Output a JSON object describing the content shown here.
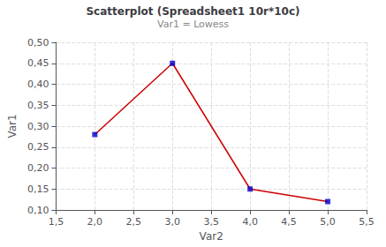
{
  "chart_data": {
    "type": "line",
    "title": "Scatterplot (Spreadsheet1 10r*10c)",
    "subtitle": "Var1 = Lowess",
    "xlabel": "Var2",
    "ylabel": "Var1",
    "x": [
      2.0,
      3.0,
      4.0,
      5.0
    ],
    "series": [
      {
        "type": "line",
        "color": "#cc0000",
        "values": [
          0.28,
          0.45,
          0.15,
          0.12
        ]
      },
      {
        "type": "scatter",
        "color": "#0000cc",
        "marker": "square",
        "values": [
          0.28,
          0.45,
          0.15,
          0.12
        ]
      }
    ],
    "xlim": [
      1.5,
      5.5
    ],
    "ylim": [
      0.1,
      0.5
    ],
    "xticks": [
      {
        "value": 1.5,
        "label": "1,5"
      },
      {
        "value": 2.0,
        "label": "2,0"
      },
      {
        "value": 2.5,
        "label": "2,5"
      },
      {
        "value": 3.0,
        "label": "3,0"
      },
      {
        "value": 3.5,
        "label": "3,5"
      },
      {
        "value": 4.0,
        "label": "4,0"
      },
      {
        "value": 4.5,
        "label": "4,5"
      },
      {
        "value": 5.0,
        "label": "5,0"
      },
      {
        "value": 5.5,
        "label": "5,5"
      }
    ],
    "yticks": [
      {
        "value": 0.1,
        "label": "0,10"
      },
      {
        "value": 0.15,
        "label": "0,15"
      },
      {
        "value": 0.2,
        "label": "0,20"
      },
      {
        "value": 0.25,
        "label": "0,25"
      },
      {
        "value": 0.3,
        "label": "0,30"
      },
      {
        "value": 0.35,
        "label": "0,35"
      },
      {
        "value": 0.4,
        "label": "0,40"
      },
      {
        "value": 0.45,
        "label": "0,45"
      },
      {
        "value": 0.5,
        "label": "0,50"
      }
    ],
    "grid": true
  }
}
